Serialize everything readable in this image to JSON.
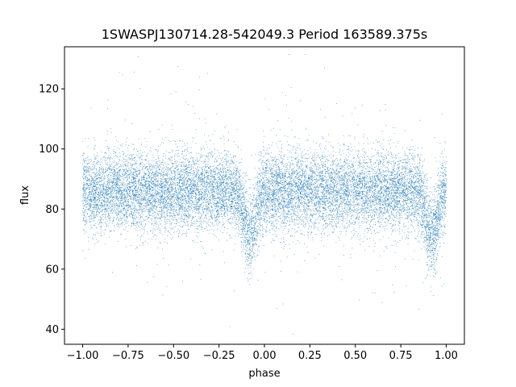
{
  "chart_data": {
    "type": "scatter",
    "title": "1SWASPJ130714.28-542049.3 Period 163589.375s",
    "xlabel": "phase",
    "ylabel": "flux",
    "xlim": [
      -1.1,
      1.1
    ],
    "ylim": [
      35,
      134
    ],
    "xticks": [
      -1.0,
      -0.75,
      -0.5,
      -0.25,
      0.0,
      0.25,
      0.5,
      0.75,
      1.0
    ],
    "xtick_labels": [
      "−1.00",
      "−0.75",
      "−0.50",
      "−0.25",
      "0.00",
      "0.25",
      "0.50",
      "0.75",
      "1.00"
    ],
    "yticks": [
      40,
      60,
      80,
      100,
      120
    ],
    "ytick_labels": [
      "40",
      "60",
      "80",
      "100",
      "120"
    ],
    "grid": false,
    "legend": "none",
    "point_color": "#1f77b4",
    "series": [
      {
        "phase_range": [
          -1.0,
          1.0
        ],
        "baseline_flux": 86,
        "scatter_sd": 6.5,
        "point_count": 16000,
        "eclipses": [
          {
            "center_phase": -0.08,
            "depth": 15,
            "half_width": 0.06
          },
          {
            "center_phase": 0.92,
            "depth": 15,
            "half_width": 0.06
          }
        ]
      }
    ]
  }
}
